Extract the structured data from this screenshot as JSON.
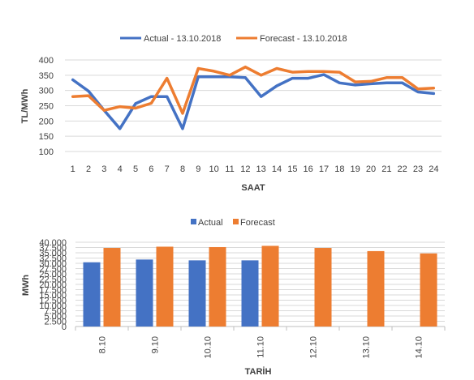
{
  "colors": {
    "actual": "#4472C4",
    "forecast": "#ED7D31",
    "grid": "#D9D9D9",
    "text": "#404040"
  },
  "chart_data": [
    {
      "type": "line",
      "title": "",
      "xlabel": "SAAT",
      "ylabel": "TL/MWh",
      "x": [
        1,
        2,
        3,
        4,
        5,
        6,
        7,
        8,
        9,
        10,
        11,
        12,
        13,
        14,
        15,
        16,
        17,
        18,
        19,
        20,
        21,
        22,
        23,
        24
      ],
      "ylim": [
        100,
        400
      ],
      "yticks": [
        100,
        150,
        200,
        250,
        300,
        350,
        400
      ],
      "grid": true,
      "legend_position": "top",
      "series": [
        {
          "name": "Actual - 13.10.2018",
          "values": [
            335,
            298,
            235,
            175,
            257,
            280,
            280,
            175,
            345,
            345,
            345,
            342,
            280,
            315,
            340,
            340,
            352,
            325,
            318,
            322,
            325,
            325,
            295,
            290
          ]
        },
        {
          "name": "Forecast - 13.10.2018",
          "values": [
            280,
            283,
            235,
            247,
            242,
            258,
            340,
            225,
            372,
            363,
            350,
            377,
            350,
            372,
            360,
            362,
            362,
            360,
            328,
            330,
            342,
            342,
            305,
            308
          ]
        }
      ]
    },
    {
      "type": "bar",
      "title": "",
      "xlabel": "TARİH",
      "ylabel": "MWh",
      "categories": [
        "8.10",
        "9.10",
        "10.10",
        "11.10",
        "12.10",
        "13.10",
        "14.10"
      ],
      "ylim": [
        0,
        40000
      ],
      "yticks": [
        "0",
        "2.500",
        "5.000",
        "7.500",
        "10.000",
        "12.500",
        "15.000",
        "17.500",
        "20.000",
        "22.500",
        "25.000",
        "27.500",
        "30.000",
        "32.500",
        "35.000",
        "37.500",
        "40.000"
      ],
      "grid": true,
      "legend_position": "top",
      "series": [
        {
          "name": "Actual",
          "values": [
            30500,
            31800,
            31400,
            31400,
            null,
            null,
            null
          ]
        },
        {
          "name": "Forecast",
          "values": [
            37300,
            37900,
            37700,
            38300,
            37300,
            35800,
            34700
          ]
        }
      ]
    }
  ]
}
